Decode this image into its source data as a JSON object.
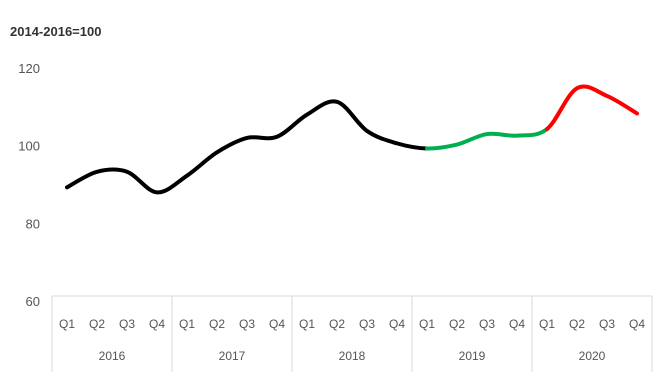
{
  "chart_data": {
    "type": "line",
    "unit_label": "2014-2016=100",
    "yticks": [
      60,
      80,
      100,
      120
    ],
    "ylim": [
      60,
      125
    ],
    "grid": false,
    "quarters": [
      "Q1",
      "Q2",
      "Q3",
      "Q4",
      "Q1",
      "Q2",
      "Q3",
      "Q4",
      "Q1",
      "Q2",
      "Q3",
      "Q4",
      "Q1",
      "Q2",
      "Q3",
      "Q4",
      "Q1",
      "Q2",
      "Q3",
      "Q4"
    ],
    "years": [
      "2016",
      "2017",
      "2018",
      "2019",
      "2020"
    ],
    "values": [
      89.5,
      93.5,
      93.5,
      88.2,
      92.5,
      98.5,
      102.2,
      102.5,
      108.2,
      111.5,
      104,
      100.8,
      99.5,
      100.5,
      103.2,
      102.8,
      104.5,
      115,
      113,
      108.5
    ],
    "segments": [
      {
        "from": 0,
        "to": 12,
        "color": "#000000"
      },
      {
        "from": 12,
        "to": 16,
        "color": "#00b050"
      },
      {
        "from": 16,
        "to": 19,
        "color": "#ff0000"
      }
    ]
  }
}
